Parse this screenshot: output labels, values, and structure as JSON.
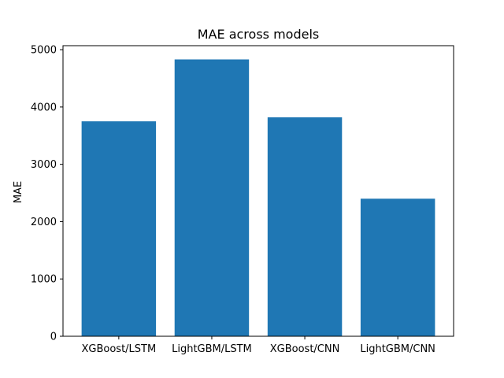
{
  "chart_data": {
    "type": "bar",
    "title": "MAE across models",
    "xlabel": "",
    "ylabel": "MAE",
    "categories": [
      "XGBoost/LSTM",
      "LightGBM/LSTM",
      "XGBoost/CNN",
      "LightGBM/CNN"
    ],
    "values": [
      3750,
      4830,
      3820,
      2400
    ],
    "ylim": [
      0,
      5070
    ],
    "yticks": [
      0,
      1000,
      2000,
      3000,
      4000,
      5000
    ],
    "grid": false,
    "bar_color": "#1f77b4"
  }
}
